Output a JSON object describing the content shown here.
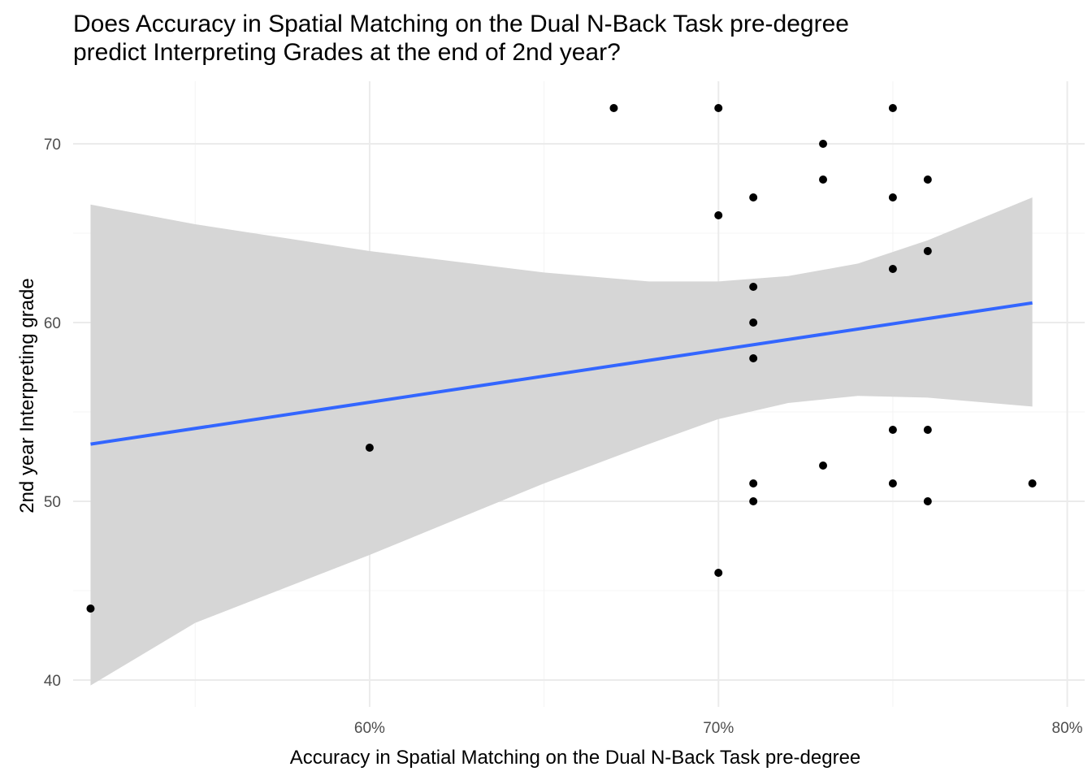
{
  "title_lines": [
    "Does Accuracy in Spatial Matching on the Dual N-Back Task pre-degree",
    "predict Interpreting Grades at the end of 2nd year?"
  ],
  "chart_data": {
    "type": "scatter",
    "title": "Does Accuracy in Spatial Matching on the Dual N-Back Task pre-degree predict Interpreting Grades at the end of 2nd year?",
    "xlabel": "Accuracy in Spatial Matching on the Dual N-Back Task pre-degree",
    "ylabel": "2nd year Interpreting grade",
    "xlim": [
      0.515,
      0.805
    ],
    "ylim": [
      38.5,
      73.5
    ],
    "x_ticks": [
      0.6,
      0.7,
      0.8
    ],
    "x_tick_labels": [
      "60%",
      "70%",
      "80%"
    ],
    "x_minor_ticks": [
      0.55,
      0.65,
      0.75
    ],
    "y_ticks": [
      40,
      50,
      60,
      70
    ],
    "y_tick_labels": [
      "40",
      "50",
      "60",
      "70"
    ],
    "y_minor_ticks": [
      45,
      55,
      65
    ],
    "grid": true,
    "points": [
      {
        "x": 0.52,
        "y": 44
      },
      {
        "x": 0.6,
        "y": 53
      },
      {
        "x": 0.67,
        "y": 72
      },
      {
        "x": 0.7,
        "y": 72
      },
      {
        "x": 0.7,
        "y": 66
      },
      {
        "x": 0.7,
        "y": 46
      },
      {
        "x": 0.71,
        "y": 67
      },
      {
        "x": 0.71,
        "y": 62
      },
      {
        "x": 0.71,
        "y": 60
      },
      {
        "x": 0.71,
        "y": 58
      },
      {
        "x": 0.71,
        "y": 51
      },
      {
        "x": 0.71,
        "y": 50
      },
      {
        "x": 0.73,
        "y": 70
      },
      {
        "x": 0.73,
        "y": 68
      },
      {
        "x": 0.73,
        "y": 52
      },
      {
        "x": 0.75,
        "y": 72
      },
      {
        "x": 0.75,
        "y": 67
      },
      {
        "x": 0.75,
        "y": 63
      },
      {
        "x": 0.75,
        "y": 54
      },
      {
        "x": 0.75,
        "y": 51
      },
      {
        "x": 0.76,
        "y": 68
      },
      {
        "x": 0.76,
        "y": 64
      },
      {
        "x": 0.76,
        "y": 54
      },
      {
        "x": 0.76,
        "y": 50
      },
      {
        "x": 0.79,
        "y": 51
      }
    ],
    "regression": {
      "method": "linear",
      "x": [
        0.52,
        0.79
      ],
      "y": [
        53.2,
        61.1
      ]
    },
    "confidence_band": {
      "x": [
        0.52,
        0.55,
        0.6,
        0.65,
        0.68,
        0.7,
        0.72,
        0.74,
        0.76,
        0.79
      ],
      "upper": [
        66.6,
        65.5,
        64.0,
        62.8,
        62.3,
        62.3,
        62.6,
        63.3,
        64.6,
        67.0
      ],
      "lower": [
        39.7,
        43.2,
        47.0,
        51.0,
        53.2,
        54.6,
        55.5,
        55.9,
        55.8,
        55.3
      ]
    },
    "colors": {
      "points": "#000000",
      "line": "#3366FF",
      "band": "#D6D6D6",
      "grid_major": "#EBEBEB",
      "grid_minor": "#F4F4F4"
    }
  }
}
